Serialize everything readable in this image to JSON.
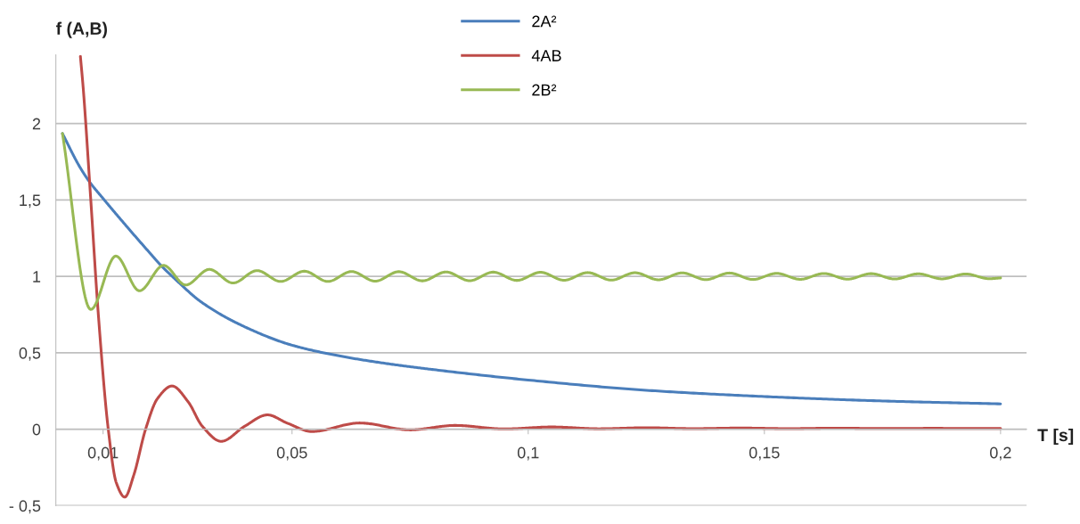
{
  "chart_data": {
    "type": "line",
    "ylabel": "f (A,B)",
    "xlabel": "T [s]",
    "xlim": [
      0,
      0.2055
    ],
    "xticks": [
      {
        "value": 0.01,
        "label": "0,01"
      },
      {
        "value": 0.05,
        "label": "0,05"
      },
      {
        "value": 0.1,
        "label": "0,1"
      },
      {
        "value": 0.15,
        "label": "0,15"
      },
      {
        "value": 0.2,
        "label": "0,2"
      }
    ],
    "ylim": [
      -0.5,
      2.45
    ],
    "yticks": [
      {
        "value": -0.5,
        "label": "- 0,5"
      },
      {
        "value": 0,
        "label": "0"
      },
      {
        "value": 0.5,
        "label": "0,5"
      },
      {
        "value": 1,
        "label": "1"
      },
      {
        "value": 1.5,
        "label": "1,5"
      },
      {
        "value": 2,
        "label": "2"
      }
    ],
    "grid": "y",
    "legend": "top",
    "marker": "none",
    "line_style": "solid",
    "series": [
      {
        "name": "2A²",
        "color": "#4a7ebb",
        "x": [
          0.0014,
          0.005,
          0.0071,
          0.01,
          0.0152,
          0.02,
          0.0221,
          0.025,
          0.0309,
          0.04,
          0.05,
          0.06,
          0.07,
          0.08,
          0.1,
          0.125,
          0.15,
          0.175,
          0.2
        ],
        "values": [
          1.935,
          1.72,
          1.62,
          1.51,
          1.32,
          1.15,
          1.077,
          0.99,
          0.83,
          0.67,
          0.55,
          0.48,
          0.43,
          0.39,
          0.322,
          0.255,
          0.214,
          0.185,
          0.166
        ]
      },
      {
        "name": "4AB",
        "color": "#be4b48",
        "x": [
          0.0052,
          0.0058,
          0.0074,
          0.009,
          0.0111,
          0.0128,
          0.0146,
          0.0165,
          0.019,
          0.0215,
          0.0246,
          0.028,
          0.031,
          0.035,
          0.04,
          0.0448,
          0.049,
          0.0542,
          0.0643,
          0.075,
          0.0845,
          0.095,
          0.105,
          0.115,
          0.125,
          0.135,
          0.145,
          0.155,
          0.165,
          0.175,
          0.185,
          0.2
        ],
        "values": [
          2.44,
          2.23,
          1.5,
          0.75,
          0,
          -0.35,
          -0.444,
          -0.3,
          0,
          0.2,
          0.283,
          0.18,
          0.02,
          -0.079,
          0.02,
          0.094,
          0.04,
          -0.015,
          0.041,
          -0.004,
          0.025,
          0.002,
          0.015,
          0.003,
          0.01,
          0.004,
          0.008,
          0.004,
          0.007,
          0.005,
          0.006,
          0.005
        ]
      },
      {
        "name": "2B²",
        "color": "#98b954",
        "x": [
          0.0014,
          0.0074,
          0.0127,
          0.0177,
          0.0228,
          0.0275,
          0.0325,
          0.0375,
          0.0426,
          0.0476,
          0.0526,
          0.0576,
          0.0626,
          0.0676,
          0.0726,
          0.0776,
          0.0826,
          0.0876,
          0.0926,
          0.0976,
          0.1026,
          0.1076,
          0.1126,
          0.1176,
          0.1226,
          0.1276,
          0.1326,
          0.1376,
          0.1426,
          0.1476,
          0.1526,
          0.1576,
          0.1626,
          0.1676,
          0.1726,
          0.1776,
          0.1826,
          0.1876,
          0.1926,
          0.1976,
          0.2
        ],
        "values": [
          1.935,
          0.784,
          1.133,
          0.906,
          1.072,
          0.944,
          1.046,
          0.957,
          1.038,
          0.967,
          1.034,
          0.967,
          1.032,
          0.969,
          1.031,
          0.971,
          1.029,
          0.972,
          1.028,
          0.974,
          1.027,
          0.975,
          1.025,
          0.976,
          1.024,
          0.978,
          1.023,
          0.979,
          1.022,
          0.98,
          1.02,
          0.981,
          1.019,
          0.982,
          1.018,
          0.983,
          1.017,
          0.984,
          1.016,
          0.985,
          0.99
        ]
      }
    ]
  }
}
